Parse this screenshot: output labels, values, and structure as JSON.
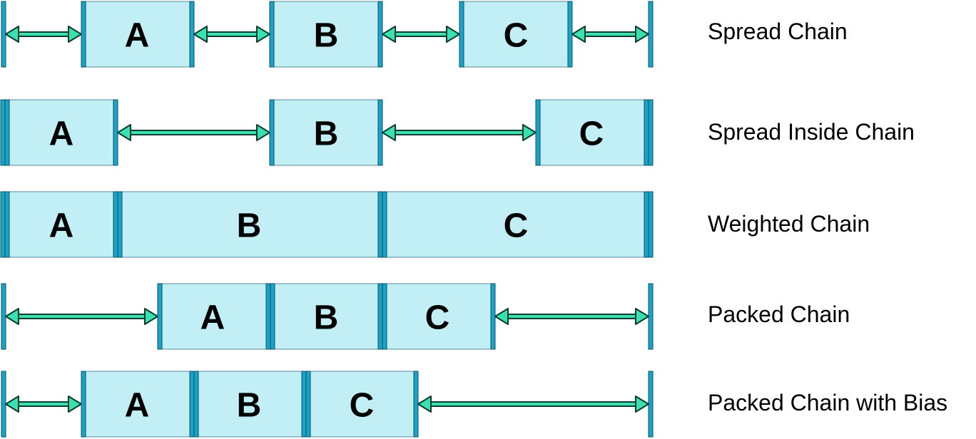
{
  "rows": [
    {
      "label": "Spread Chain",
      "letters": [
        "A",
        "B",
        "C"
      ]
    },
    {
      "label": "Spread Inside Chain",
      "letters": [
        "A",
        "B",
        "C"
      ]
    },
    {
      "label": "Weighted Chain",
      "letters": [
        "A",
        "B",
        "C"
      ]
    },
    {
      "label": "Packed Chain",
      "letters": [
        "A",
        "B",
        "C"
      ]
    },
    {
      "label": "Packed Chain with Bias",
      "letters": [
        "A",
        "B",
        "C"
      ]
    }
  ],
  "colors": {
    "box_fill": "#c2eef5",
    "edge_fill": "#1ba3c6",
    "arrow_fill": "#39e0b0",
    "arrow_outline": "#0b3a30"
  }
}
